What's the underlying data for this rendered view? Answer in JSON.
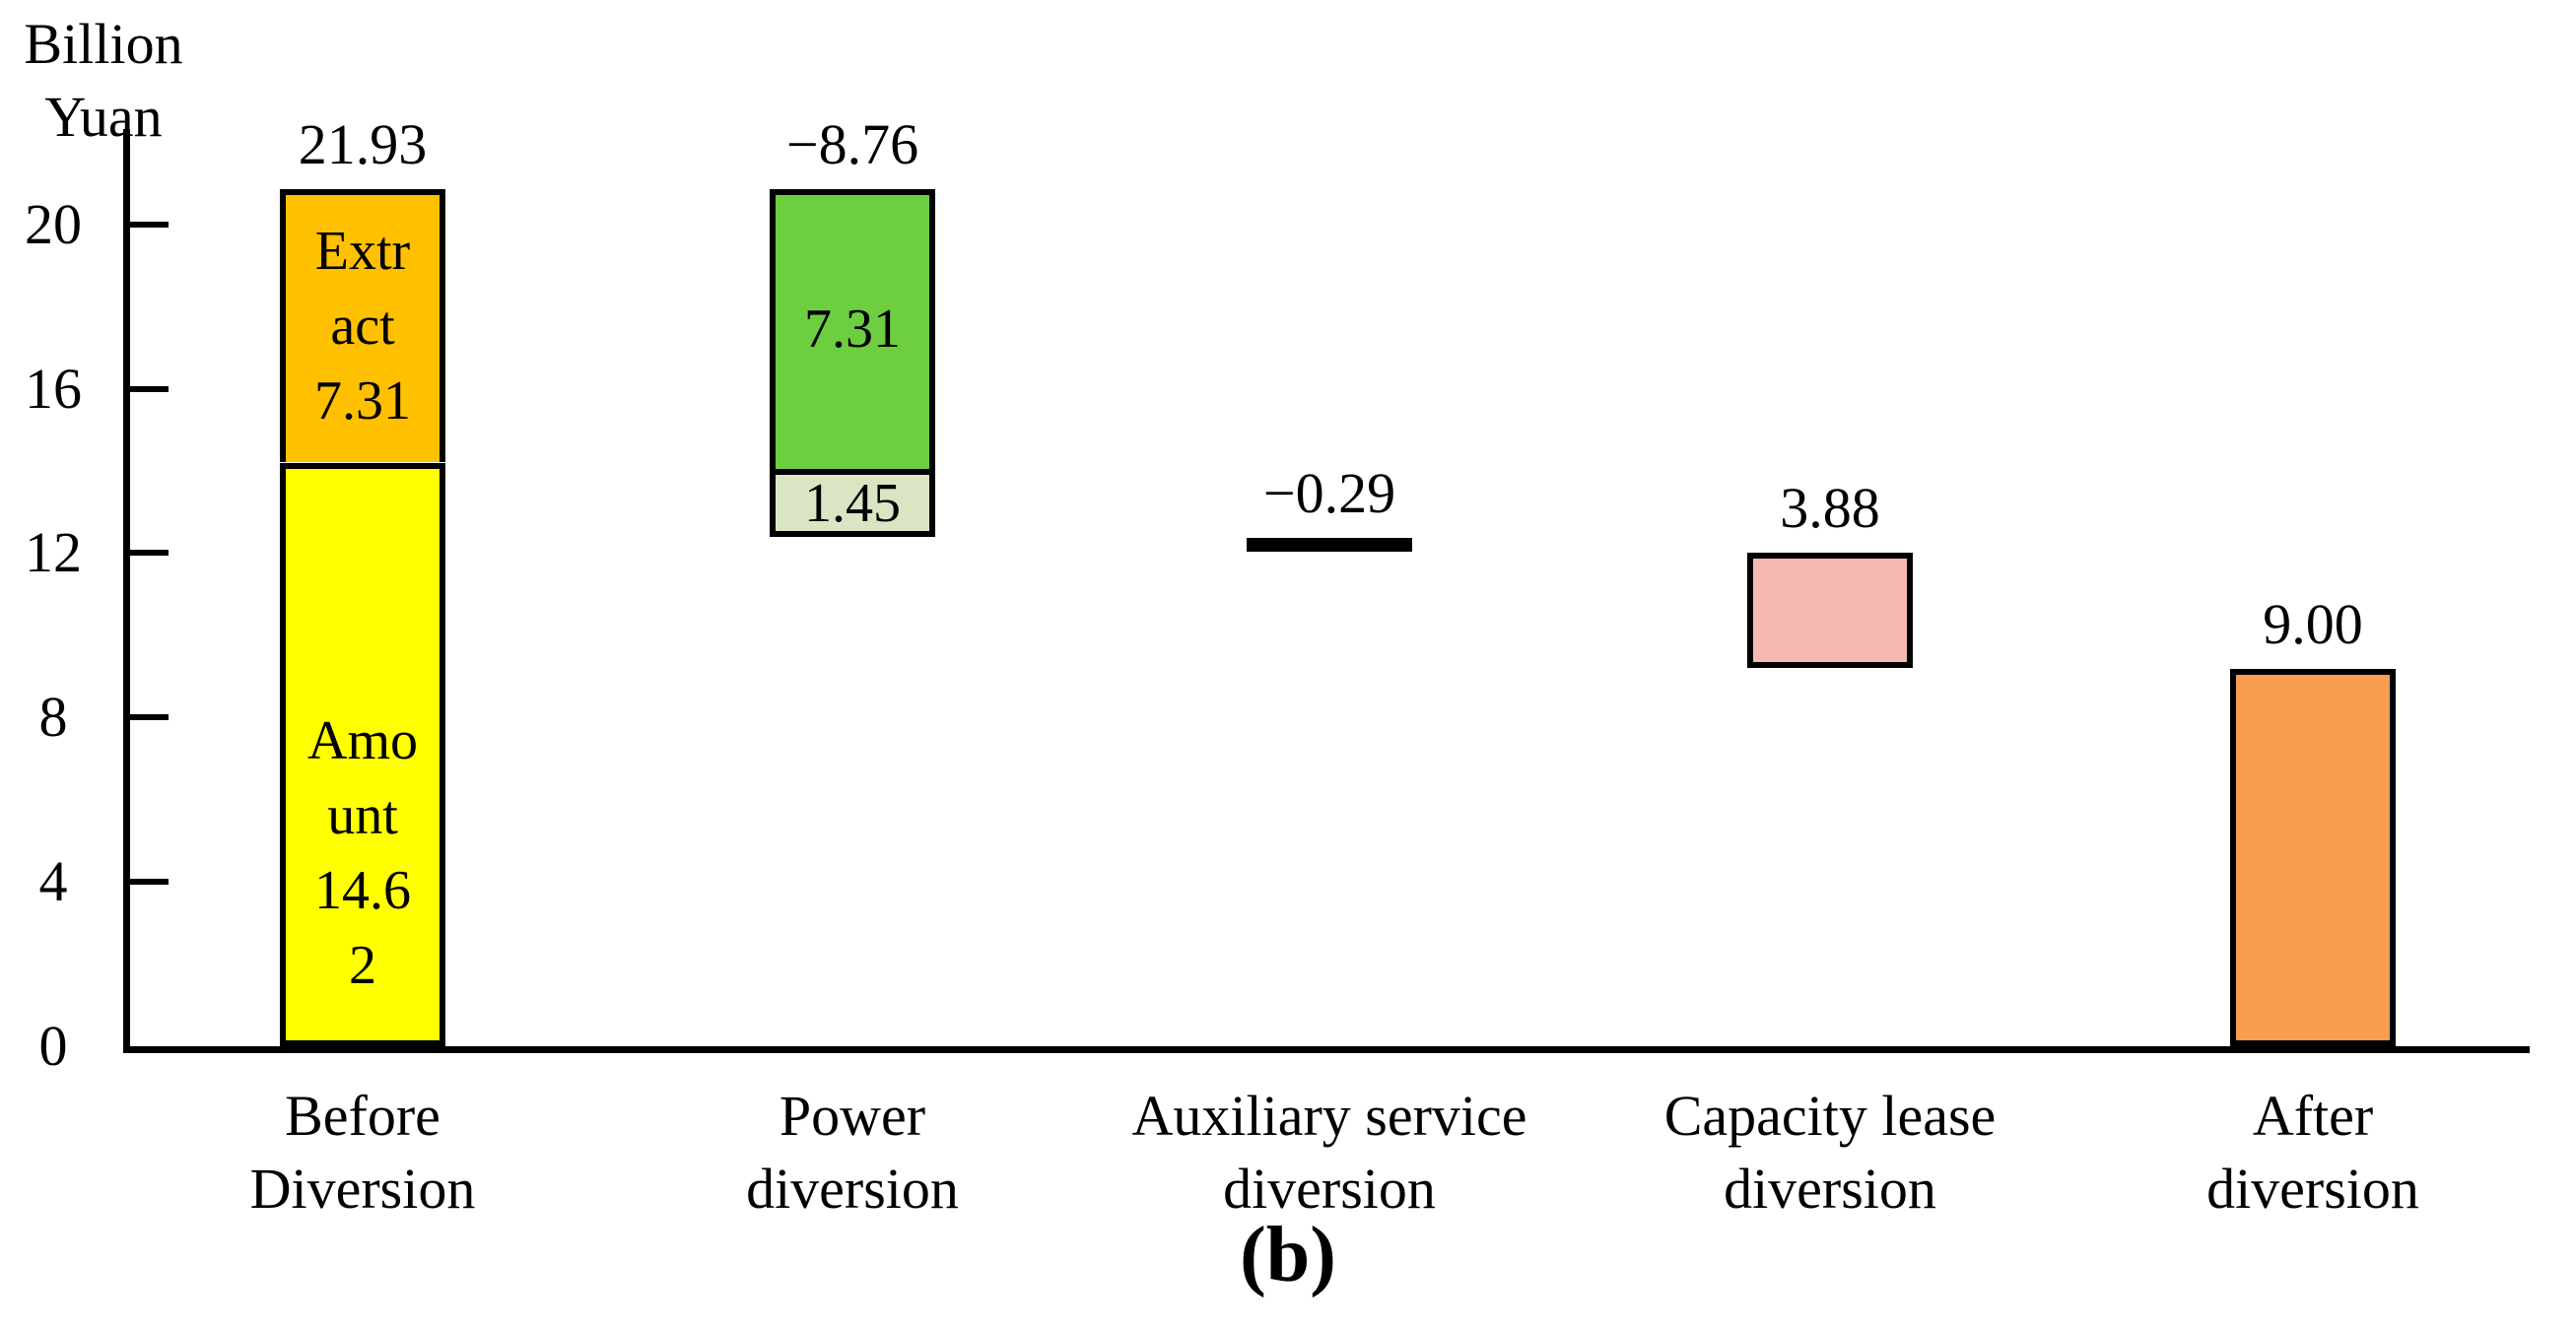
{
  "figure": {
    "caption": "(b)",
    "background": "#FFFFFF"
  },
  "chart_data": {
    "type": "bar",
    "subtype": "waterfall",
    "title": "",
    "xlabel": "",
    "ylabel": "Billion\nYuan",
    "legend": "none",
    "grid": false,
    "y_axis": {
      "ticks": [
        0,
        4,
        8,
        12,
        16,
        20
      ],
      "range": [
        0,
        22.3
      ],
      "unit": "Billion Yuan"
    },
    "categories": [
      "Before\nDiversion",
      "Power\ndiversion",
      "Auxiliary service\ndiversion",
      "Capacity lease\ndiversion",
      "After\ndiversion"
    ],
    "bars": [
      {
        "category": "Before Diversion",
        "value_label": "21.93",
        "total": 21.93,
        "segments": [
          {
            "name": "Amount",
            "value": 14.62,
            "label": "Amo\nunt\n14.6\n2",
            "from": 0,
            "to": 14.2,
            "color": "#FFFF00",
            "label_dy": 100
          },
          {
            "name": "Extract",
            "value": 7.31,
            "label": "Extr\nact\n7.31",
            "from": 14.2,
            "to": 20.85,
            "color": "#FFC000",
            "label_dy": 0
          }
        ]
      },
      {
        "category": "Power diversion",
        "value_label": "−8.76",
        "total": -8.76,
        "segments": [
          {
            "name": "",
            "value": 1.45,
            "label": "1.45",
            "from": 12.4,
            "to": 14.05,
            "color": "#D9E5C3",
            "label_dy": 0
          },
          {
            "name": "",
            "value": 7.31,
            "label": "7.31",
            "from": 14.05,
            "to": 20.85,
            "color": "#6DCE40",
            "label_dy": 0
          }
        ]
      },
      {
        "category": "Auxiliary service diversion",
        "value_label": "−0.29",
        "total": -0.29,
        "segments": [
          {
            "name": "",
            "value": 0.29,
            "label": "",
            "from": 12.04,
            "to": 12.36,
            "color": "#00B0F0",
            "border_width": 7,
            "label_dy": 0
          }
        ]
      },
      {
        "category": "Capacity lease diversion",
        "value_label": "3.88",
        "total": 3.88,
        "segments": [
          {
            "name": "",
            "value": 3.88,
            "label": "",
            "from": 9.2,
            "to": 12.0,
            "color": "#F4B9B1",
            "label_dy": 0
          }
        ]
      },
      {
        "category": "After diversion",
        "value_label": "9.00",
        "total": 9.0,
        "segments": [
          {
            "name": "",
            "value": 9.0,
            "label": "",
            "from": 0,
            "to": 9.18,
            "color": "#FB9D51",
            "label_dy": 0
          }
        ]
      }
    ],
    "colors": {
      "axis": "#000000",
      "yellow": "#FFFF00",
      "amber": "#FFC000",
      "green": "#6DCE40",
      "light_green": "#D9E5C3",
      "blue": "#00B0F0",
      "pink": "#F4B9B1",
      "orange": "#FB9D51"
    }
  }
}
